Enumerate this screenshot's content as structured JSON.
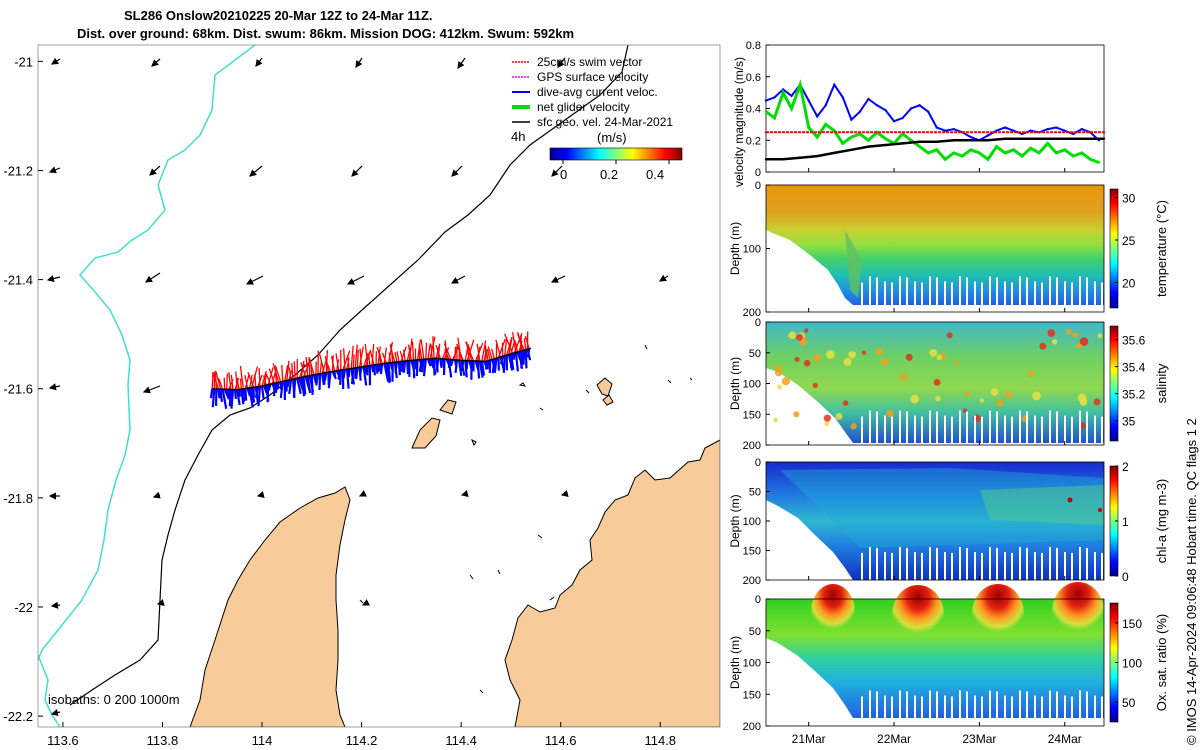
{
  "figure": {
    "title_line1": "SL286 Onslow20210225 20-Mar 12Z to 24-Mar 11Z.",
    "title_line2": "Dist. over ground: 68km. Dist. swum: 86km. Mission DOG: 412km. Swum: 592km",
    "footer": "© IMOS 14-Apr-2024 09:06:48 Hobart time. QC flags 1  2"
  },
  "map": {
    "legend": [
      {
        "label": "25cm/s swim vector",
        "color": "#ff0000"
      },
      {
        "label": "GPS surface velocity",
        "color": "#ff00ff"
      },
      {
        "label": "dive-avg current veloc.",
        "color": "#0000ff"
      },
      {
        "label": "net glider velocity",
        "color": "#00dd00"
      },
      {
        "label": "sfc geo. vel. 24-Mar-2021",
        "color": "#000000"
      }
    ],
    "arrow_duration": "4h",
    "colorbar": {
      "unit": "(m/s)",
      "ticks": [
        "0",
        "0.2",
        "0.4"
      ],
      "range": [
        0,
        0.5
      ]
    },
    "isobaths_label": "isobaths: 0   200  1000m",
    "colors": {
      "land": "#f8cb9a",
      "coast": "#000000",
      "isobath_200": "#000000",
      "isobath_1000": "#40e0d0"
    }
  },
  "chart_data": [
    {
      "type": "map",
      "title": "",
      "x": {
        "label": "",
        "range": [
          113.55,
          114.92
        ],
        "ticks": [
          113.6,
          113.8,
          114,
          114.2,
          114.4,
          114.6,
          114.8
        ],
        "tick_labels": [
          "113.6",
          "113.8",
          "114",
          "114.2",
          "114.4",
          "114.6",
          "114.8"
        ]
      },
      "y": {
        "label": "",
        "range": [
          -22.22,
          -20.97
        ],
        "ticks": [
          -21,
          -21.2,
          -21.4,
          -21.6,
          -21.8,
          -22,
          -22.2
        ],
        "tick_labels": [
          "-21",
          "-21.2",
          "-21.4",
          "-21.6",
          "-21.8",
          "-22",
          "-22.2"
        ]
      },
      "glider_track": [
        [
          113.9,
          -21.6
        ],
        [
          113.95,
          -21.602
        ],
        [
          114.0,
          -21.595
        ],
        [
          114.05,
          -21.585
        ],
        [
          114.1,
          -21.575
        ],
        [
          114.15,
          -21.567
        ],
        [
          114.2,
          -21.56
        ],
        [
          114.25,
          -21.553
        ],
        [
          114.3,
          -21.548
        ],
        [
          114.35,
          -21.544
        ],
        [
          114.4,
          -21.548
        ],
        [
          114.45,
          -21.55
        ],
        [
          114.5,
          -21.536
        ],
        [
          114.54,
          -21.526
        ]
      ]
    },
    {
      "type": "line",
      "title": "",
      "ylabel": "velocity magnitude (m/s)",
      "ylim": [
        0,
        0.8
      ],
      "yticks": [
        "0",
        "0.2",
        "0.4",
        "0.6",
        "0.8"
      ],
      "xlim": [
        20.5,
        24.46
      ],
      "series": [
        {
          "name": "dive-avg current veloc.",
          "color": "#0000ff",
          "x": [
            20.5,
            20.6,
            20.7,
            20.8,
            20.9,
            21.0,
            21.1,
            21.2,
            21.3,
            21.4,
            21.5,
            21.6,
            21.7,
            21.8,
            21.9,
            22.0,
            22.1,
            22.2,
            22.3,
            22.4,
            22.5,
            22.6,
            22.7,
            22.8,
            22.9,
            23.0,
            23.1,
            23.2,
            23.3,
            23.4,
            23.5,
            23.6,
            23.7,
            23.8,
            23.9,
            24.0,
            24.1,
            24.2,
            24.3,
            24.4
          ],
          "y": [
            0.45,
            0.47,
            0.52,
            0.48,
            0.55,
            0.45,
            0.35,
            0.42,
            0.55,
            0.47,
            0.33,
            0.38,
            0.46,
            0.42,
            0.39,
            0.32,
            0.34,
            0.4,
            0.42,
            0.38,
            0.28,
            0.26,
            0.27,
            0.25,
            0.22,
            0.2,
            0.23,
            0.26,
            0.28,
            0.26,
            0.24,
            0.26,
            0.25,
            0.27,
            0.28,
            0.26,
            0.24,
            0.27,
            0.25,
            0.2
          ]
        },
        {
          "name": "net glider velocity",
          "color": "#00dd00",
          "x": [
            20.5,
            20.6,
            20.7,
            20.8,
            20.9,
            21.0,
            21.1,
            21.2,
            21.3,
            21.4,
            21.5,
            21.6,
            21.7,
            21.8,
            21.9,
            22.0,
            22.1,
            22.2,
            22.3,
            22.4,
            22.5,
            22.6,
            22.7,
            22.8,
            22.9,
            23.0,
            23.1,
            23.2,
            23.3,
            23.4,
            23.5,
            23.6,
            23.7,
            23.8,
            23.9,
            24.0,
            24.1,
            24.2,
            24.3,
            24.4
          ],
          "y": [
            0.38,
            0.34,
            0.5,
            0.4,
            0.55,
            0.28,
            0.22,
            0.3,
            0.26,
            0.18,
            0.22,
            0.24,
            0.2,
            0.25,
            0.21,
            0.18,
            0.24,
            0.2,
            0.16,
            0.12,
            0.14,
            0.08,
            0.12,
            0.1,
            0.14,
            0.12,
            0.08,
            0.16,
            0.12,
            0.14,
            0.1,
            0.15,
            0.12,
            0.18,
            0.12,
            0.14,
            0.1,
            0.12,
            0.08,
            0.06
          ]
        },
        {
          "name": "swim speed",
          "color": "#ff0000",
          "x": [
            20.5,
            24.46
          ],
          "y": [
            0.25,
            0.25
          ]
        },
        {
          "name": "sfc geo. vel.",
          "color": "#000000",
          "x": [
            20.5,
            20.7,
            20.9,
            21.1,
            21.3,
            21.5,
            21.7,
            21.9,
            22.1,
            22.3,
            22.5,
            22.7,
            22.9,
            23.1,
            23.3,
            23.5,
            23.7,
            23.9,
            24.1,
            24.3,
            24.46
          ],
          "y": [
            0.08,
            0.08,
            0.09,
            0.1,
            0.12,
            0.14,
            0.16,
            0.17,
            0.18,
            0.19,
            0.19,
            0.2,
            0.2,
            0.2,
            0.21,
            0.21,
            0.21,
            0.21,
            0.21,
            0.21,
            0.21
          ]
        }
      ]
    },
    {
      "type": "heatmap",
      "ylabel": "Depth (m)",
      "cbar_label": "temperature (°C)",
      "ylim": [
        0,
        200
      ],
      "yticks": [
        "0",
        "100",
        "200"
      ],
      "clim": [
        17,
        31
      ],
      "cticks": [
        "20",
        "25",
        "30"
      ]
    },
    {
      "type": "heatmap",
      "ylabel": "Depth (m)",
      "cbar_label": "salinity",
      "ylim": [
        0,
        200
      ],
      "yticks": [
        "0",
        "50",
        "100",
        "150",
        "200"
      ],
      "clim": [
        34.85,
        35.7
      ],
      "cticks": [
        "35",
        "35.2",
        "35.4",
        "35.6"
      ]
    },
    {
      "type": "heatmap",
      "ylabel": "Depth (m)",
      "cbar_label": "chl-a (mg m-3)",
      "ylim": [
        0,
        200
      ],
      "yticks": [
        "0",
        "50",
        "100",
        "150",
        "200"
      ],
      "clim": [
        0,
        2
      ],
      "cticks": [
        "0",
        "1",
        "2"
      ]
    },
    {
      "type": "heatmap",
      "ylabel": "Depth (m)",
      "cbar_label": "Ox. sat. ratio (%)",
      "ylim": [
        0,
        200
      ],
      "yticks": [
        "0",
        "50",
        "100",
        "150",
        "200"
      ],
      "clim": [
        25,
        175
      ],
      "cticks": [
        "50",
        "100",
        "150"
      ],
      "xlim": [
        20.5,
        24.46
      ],
      "xticks": [
        21,
        22,
        23,
        24
      ],
      "xtick_labels": [
        "21Mar",
        "22Mar",
        "23Mar",
        "24Mar"
      ]
    }
  ]
}
